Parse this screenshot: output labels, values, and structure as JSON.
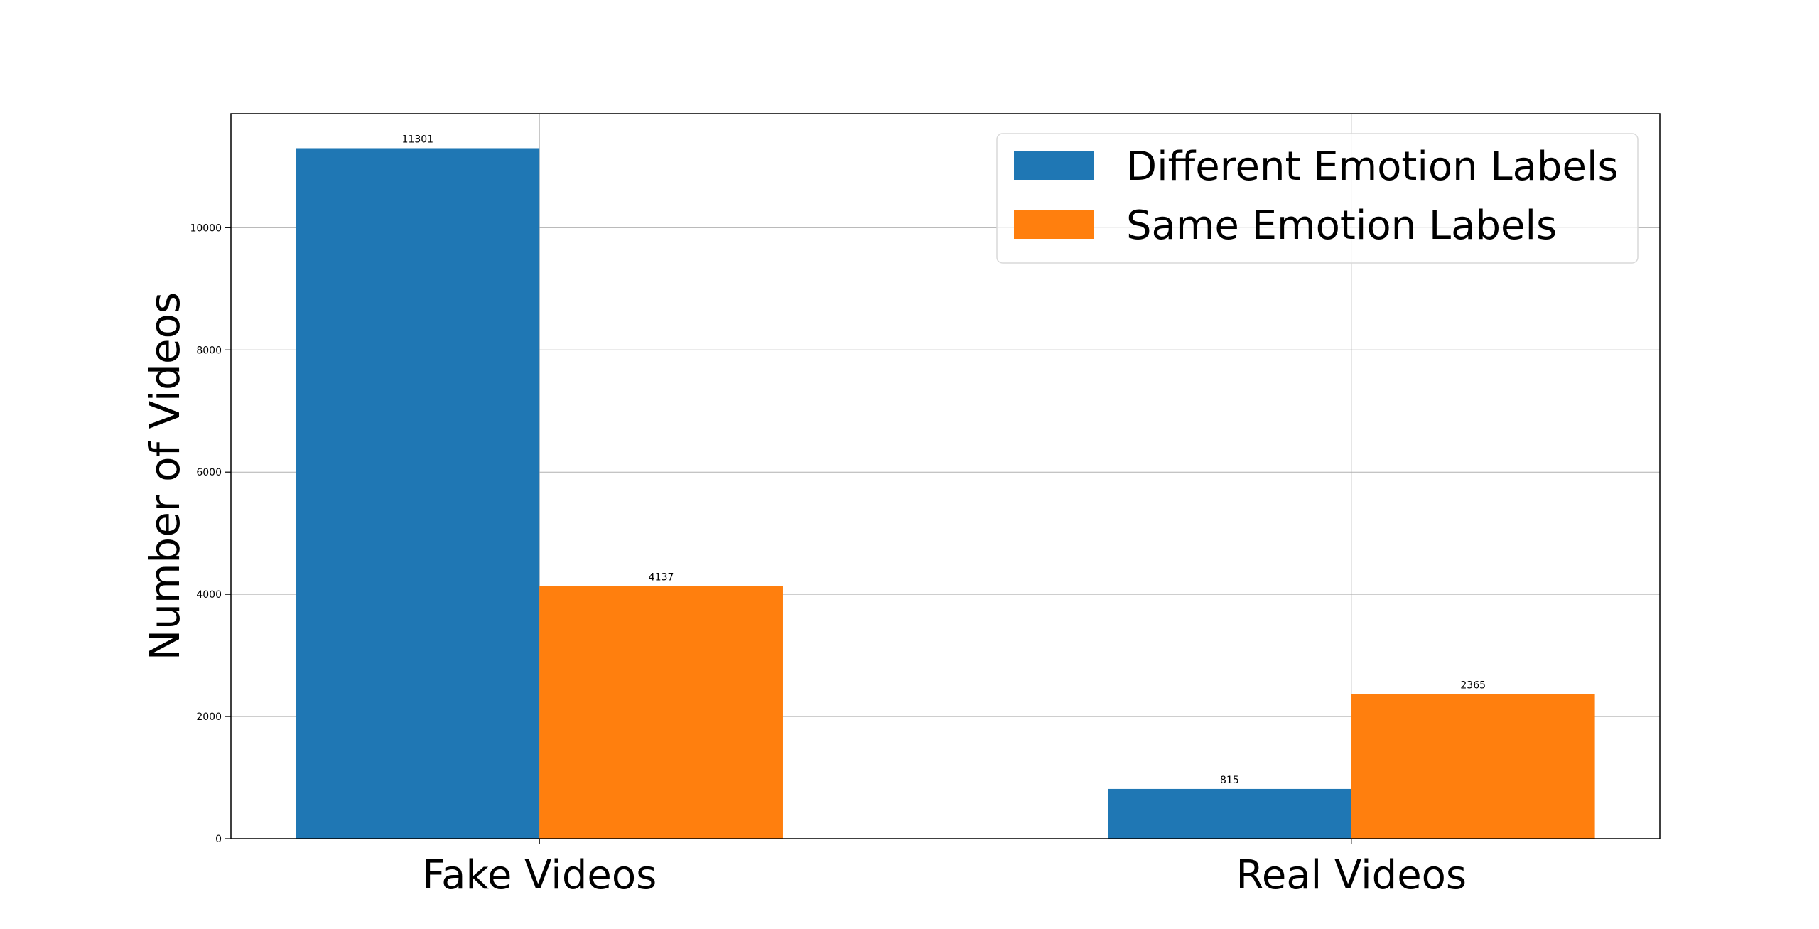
{
  "chart_data": {
    "type": "bar",
    "categories": [
      "Fake Videos",
      "Real Videos"
    ],
    "series": [
      {
        "name": "Different Emotion Labels",
        "values": [
          11301,
          815
        ],
        "color": "#1f77b4"
      },
      {
        "name": "Same Emotion Labels",
        "values": [
          4137,
          2365
        ],
        "color": "#ff7f0e"
      }
    ],
    "ylabel": "Number of Videos",
    "xlabel": "",
    "ylim": [
      0,
      11865
    ],
    "yticks": [
      0,
      2000,
      4000,
      6000,
      8000,
      10000
    ],
    "grid": true,
    "legend_position": "top-right"
  }
}
